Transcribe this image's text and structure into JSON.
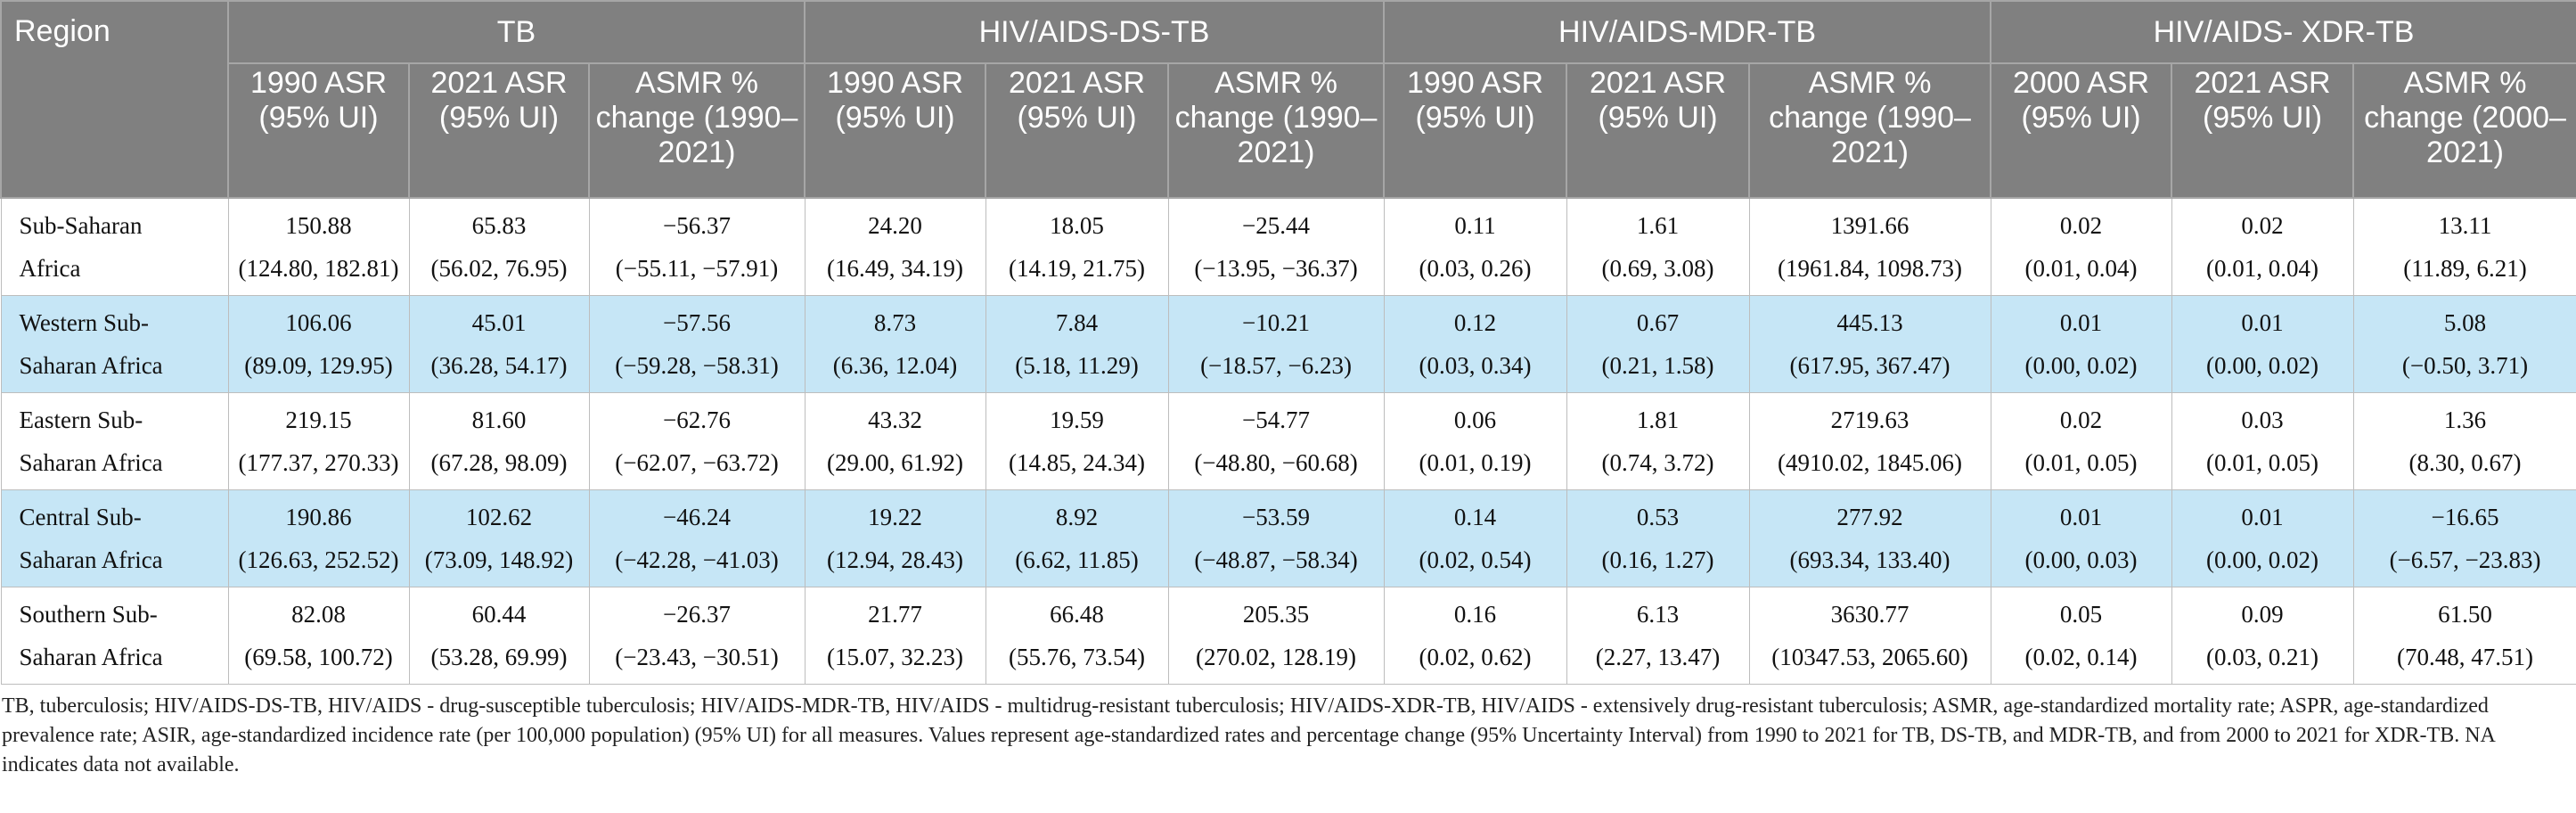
{
  "table": {
    "header": {
      "region": "Region",
      "groups": [
        "TB",
        "HIV/AIDS-DS-TB",
        "HIV/AIDS-MDR-TB",
        "HIV/AIDS- XDR-TB"
      ],
      "columns": [
        "1990 ASR (95% UI)",
        "2021 ASR (95% UI)",
        "ASMR % change (1990–2021)",
        "1990 ASR (95% UI)",
        "2021 ASR (95% UI)",
        "ASMR % change (1990–2021)",
        "1990 ASR (95% UI)",
        "2021 ASR (95% UI)",
        "ASMR % change (1990–2021)",
        "2000 ASR (95% UI)",
        "2021 ASR (95% UI)",
        "ASMR % change (2000–2021)"
      ]
    },
    "rows": [
      {
        "region": "Sub-Saharan Africa",
        "cells": [
          {
            "value": "150.88",
            "interval": "(124.80, 182.81)"
          },
          {
            "value": "65.83",
            "interval": "(56.02, 76.95)"
          },
          {
            "value": "−56.37",
            "interval": "(−55.11, −57.91)"
          },
          {
            "value": "24.20",
            "interval": "(16.49, 34.19)"
          },
          {
            "value": "18.05",
            "interval": "(14.19, 21.75)"
          },
          {
            "value": "−25.44",
            "interval": "(−13.95, −36.37)"
          },
          {
            "value": "0.11",
            "interval": "(0.03, 0.26)"
          },
          {
            "value": "1.61",
            "interval": "(0.69, 3.08)"
          },
          {
            "value": "1391.66",
            "interval": "(1961.84, 1098.73)"
          },
          {
            "value": "0.02",
            "interval": "(0.01, 0.04)"
          },
          {
            "value": "0.02",
            "interval": "(0.01, 0.04)"
          },
          {
            "value": "13.11",
            "interval": "(11.89, 6.21)"
          }
        ]
      },
      {
        "region": "Western Sub-Saharan Africa",
        "cells": [
          {
            "value": "106.06",
            "interval": "(89.09, 129.95)"
          },
          {
            "value": "45.01",
            "interval": "(36.28, 54.17)"
          },
          {
            "value": "−57.56",
            "interval": "(−59.28, −58.31)"
          },
          {
            "value": "8.73",
            "interval": "(6.36, 12.04)"
          },
          {
            "value": "7.84",
            "interval": "(5.18, 11.29)"
          },
          {
            "value": "−10.21",
            "interval": "(−18.57, −6.23)"
          },
          {
            "value": "0.12",
            "interval": "(0.03, 0.34)"
          },
          {
            "value": "0.67",
            "interval": "(0.21, 1.58)"
          },
          {
            "value": "445.13",
            "interval": "(617.95, 367.47)"
          },
          {
            "value": "0.01",
            "interval": "(0.00, 0.02)"
          },
          {
            "value": "0.01",
            "interval": "(0.00, 0.02)"
          },
          {
            "value": "5.08",
            "interval": "(−0.50, 3.71)"
          }
        ]
      },
      {
        "region": "Eastern Sub-Saharan Africa",
        "cells": [
          {
            "value": "219.15",
            "interval": "(177.37, 270.33)"
          },
          {
            "value": "81.60",
            "interval": "(67.28, 98.09)"
          },
          {
            "value": "−62.76",
            "interval": "(−62.07, −63.72)"
          },
          {
            "value": "43.32",
            "interval": "(29.00, 61.92)"
          },
          {
            "value": "19.59",
            "interval": "(14.85, 24.34)"
          },
          {
            "value": "−54.77",
            "interval": "(−48.80, −60.68)"
          },
          {
            "value": "0.06",
            "interval": "(0.01, 0.19)"
          },
          {
            "value": "1.81",
            "interval": "(0.74, 3.72)"
          },
          {
            "value": "2719.63",
            "interval": "(4910.02, 1845.06)"
          },
          {
            "value": "0.02",
            "interval": "(0.01, 0.05)"
          },
          {
            "value": "0.03",
            "interval": "(0.01, 0.05)"
          },
          {
            "value": "1.36",
            "interval": "(8.30, 0.67)"
          }
        ]
      },
      {
        "region": "Central Sub-Saharan Africa",
        "cells": [
          {
            "value": "190.86",
            "interval": "(126.63, 252.52)"
          },
          {
            "value": "102.62",
            "interval": "(73.09, 148.92)"
          },
          {
            "value": "−46.24",
            "interval": "(−42.28, −41.03)"
          },
          {
            "value": "19.22",
            "interval": "(12.94, 28.43)"
          },
          {
            "value": "8.92",
            "interval": "(6.62, 11.85)"
          },
          {
            "value": "−53.59",
            "interval": "(−48.87, −58.34)"
          },
          {
            "value": "0.14",
            "interval": "(0.02, 0.54)"
          },
          {
            "value": "0.53",
            "interval": "(0.16, 1.27)"
          },
          {
            "value": "277.92",
            "interval": "(693.34, 133.40)"
          },
          {
            "value": "0.01",
            "interval": "(0.00, 0.03)"
          },
          {
            "value": "0.01",
            "interval": "(0.00, 0.02)"
          },
          {
            "value": "−16.65",
            "interval": "(−6.57, −23.83)"
          }
        ]
      },
      {
        "region": "Southern Sub-Saharan Africa",
        "cells": [
          {
            "value": "82.08",
            "interval": "(69.58, 100.72)"
          },
          {
            "value": "60.44",
            "interval": "(53.28, 69.99)"
          },
          {
            "value": "−26.37",
            "interval": "(−23.43, −30.51)"
          },
          {
            "value": "21.77",
            "interval": "(15.07, 32.23)"
          },
          {
            "value": "66.48",
            "interval": "(55.76, 73.54)"
          },
          {
            "value": "205.35",
            "interval": "(270.02, 128.19)"
          },
          {
            "value": "0.16",
            "interval": "(0.02, 0.62)"
          },
          {
            "value": "6.13",
            "interval": "(2.27, 13.47)"
          },
          {
            "value": "3630.77",
            "interval": "(10347.53, 2065.60)"
          },
          {
            "value": "0.05",
            "interval": "(0.02, 0.14)"
          },
          {
            "value": "0.09",
            "interval": "(0.03, 0.21)"
          },
          {
            "value": "61.50",
            "interval": "(70.48, 47.51)"
          }
        ]
      }
    ],
    "footnote": "TB, tuberculosis; HIV/AIDS-DS-TB, HIV/AIDS - drug-susceptible tuberculosis; HIV/AIDS-MDR-TB, HIV/AIDS - multidrug-resistant tuberculosis; HIV/AIDS-XDR-TB, HIV/AIDS - extensively drug-resistant tuberculosis; ASMR, age-standardized mortality rate; ASPR, age-standardized prevalence rate; ASIR, age-standardized incidence rate (per 100,000 population) (95% UI) for all measures. Values represent age-standardized rates and percentage change (95% Uncertainty Interval) from 1990 to 2021 for TB, DS-TB, and MDR-TB, and from 2000 to 2021 for XDR-TB. NA indicates data not available."
  }
}
